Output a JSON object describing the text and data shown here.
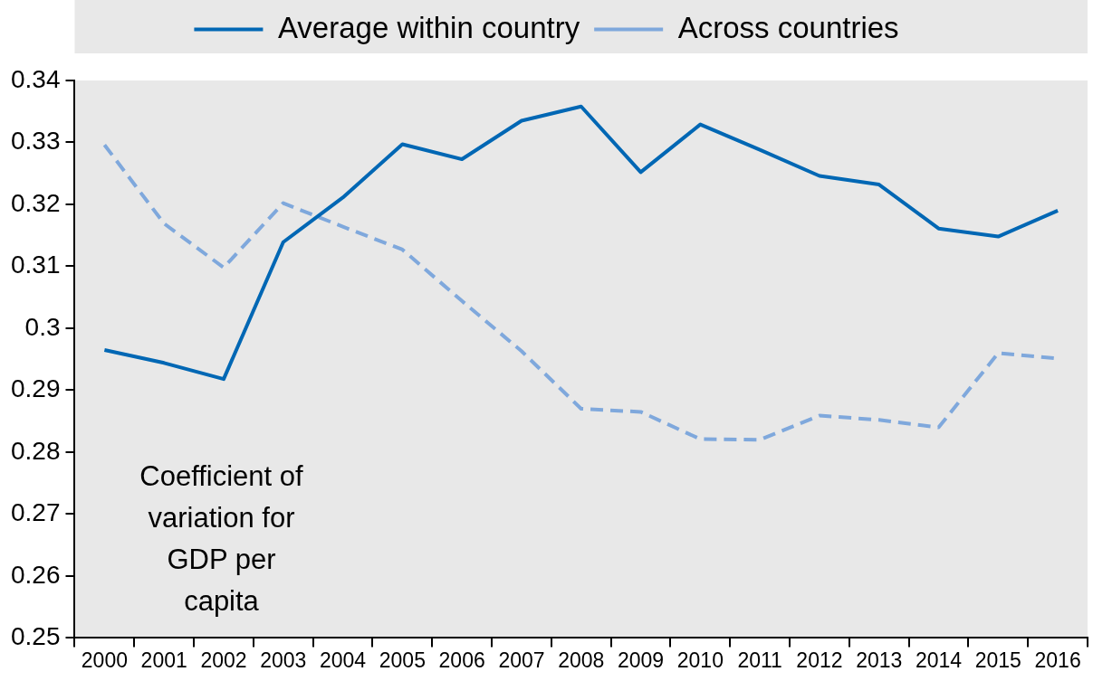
{
  "chart_data": {
    "type": "line",
    "categories": [
      "2000",
      "2001",
      "2002",
      "2003",
      "2004",
      "2005",
      "2006",
      "2007",
      "2008",
      "2009",
      "2010",
      "2011",
      "2012",
      "2013",
      "2014",
      "2015",
      "2016"
    ],
    "series": [
      {
        "name": "Average within country",
        "color": "#0067b4",
        "line_style": "solid",
        "values": [
          0.2965,
          0.2944,
          0.2918,
          0.3139,
          0.3211,
          0.3297,
          0.3273,
          0.3335,
          0.3358,
          0.3252,
          0.3329,
          0.3288,
          0.3246,
          0.3232,
          0.3161,
          0.3148,
          0.319
        ]
      },
      {
        "name": "Across countries",
        "color": "#7fa8dc",
        "line_style": "dashed",
        "values": [
          0.3296,
          0.3169,
          0.3098,
          0.3202,
          0.3164,
          0.3127,
          0.3044,
          0.2963,
          0.287,
          0.2865,
          0.2821,
          0.282,
          0.2859,
          0.2852,
          0.284,
          0.296,
          0.2951
        ]
      }
    ],
    "ylim": [
      0.25,
      0.34
    ],
    "yticks": [
      0.25,
      0.26,
      0.27,
      0.28,
      0.29,
      0.3,
      0.31,
      0.32,
      0.33,
      0.34
    ],
    "annotations": [
      "Coefficient of variation for GDP per capita"
    ],
    "grid": false,
    "legend": "top",
    "marker": "none"
  }
}
